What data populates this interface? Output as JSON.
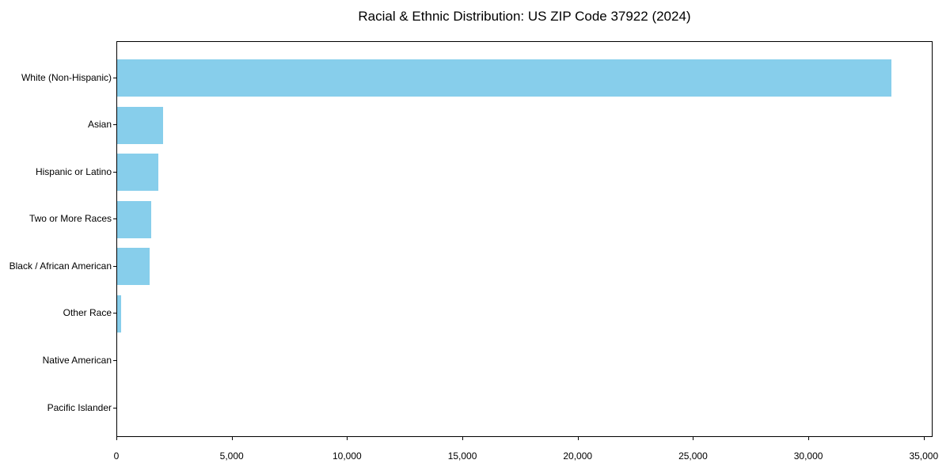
{
  "chart_data": {
    "type": "bar",
    "orientation": "horizontal",
    "title": "Racial & Ethnic Distribution: US ZIP Code 37922 (2024)",
    "categories": [
      "White (Non-Hispanic)",
      "Asian",
      "Hispanic or Latino",
      "Two or More Races",
      "Black / African American",
      "Other Race",
      "Native American",
      "Pacific Islander"
    ],
    "values": [
      33600,
      1980,
      1780,
      1490,
      1410,
      180,
      0,
      0
    ],
    "xlabel": "",
    "ylabel": "",
    "xticks": [
      0,
      5000,
      10000,
      15000,
      20000,
      25000,
      30000,
      35000
    ],
    "xtick_labels": [
      "0",
      "5,000",
      "10,000",
      "15,000",
      "20,000",
      "25,000",
      "30,000",
      "35,000"
    ],
    "xlim": [
      0,
      35350
    ],
    "grid": false,
    "legend": "none",
    "bar_color": "#87CEEB",
    "text_color": "#000000",
    "spine_color": "#000000"
  }
}
